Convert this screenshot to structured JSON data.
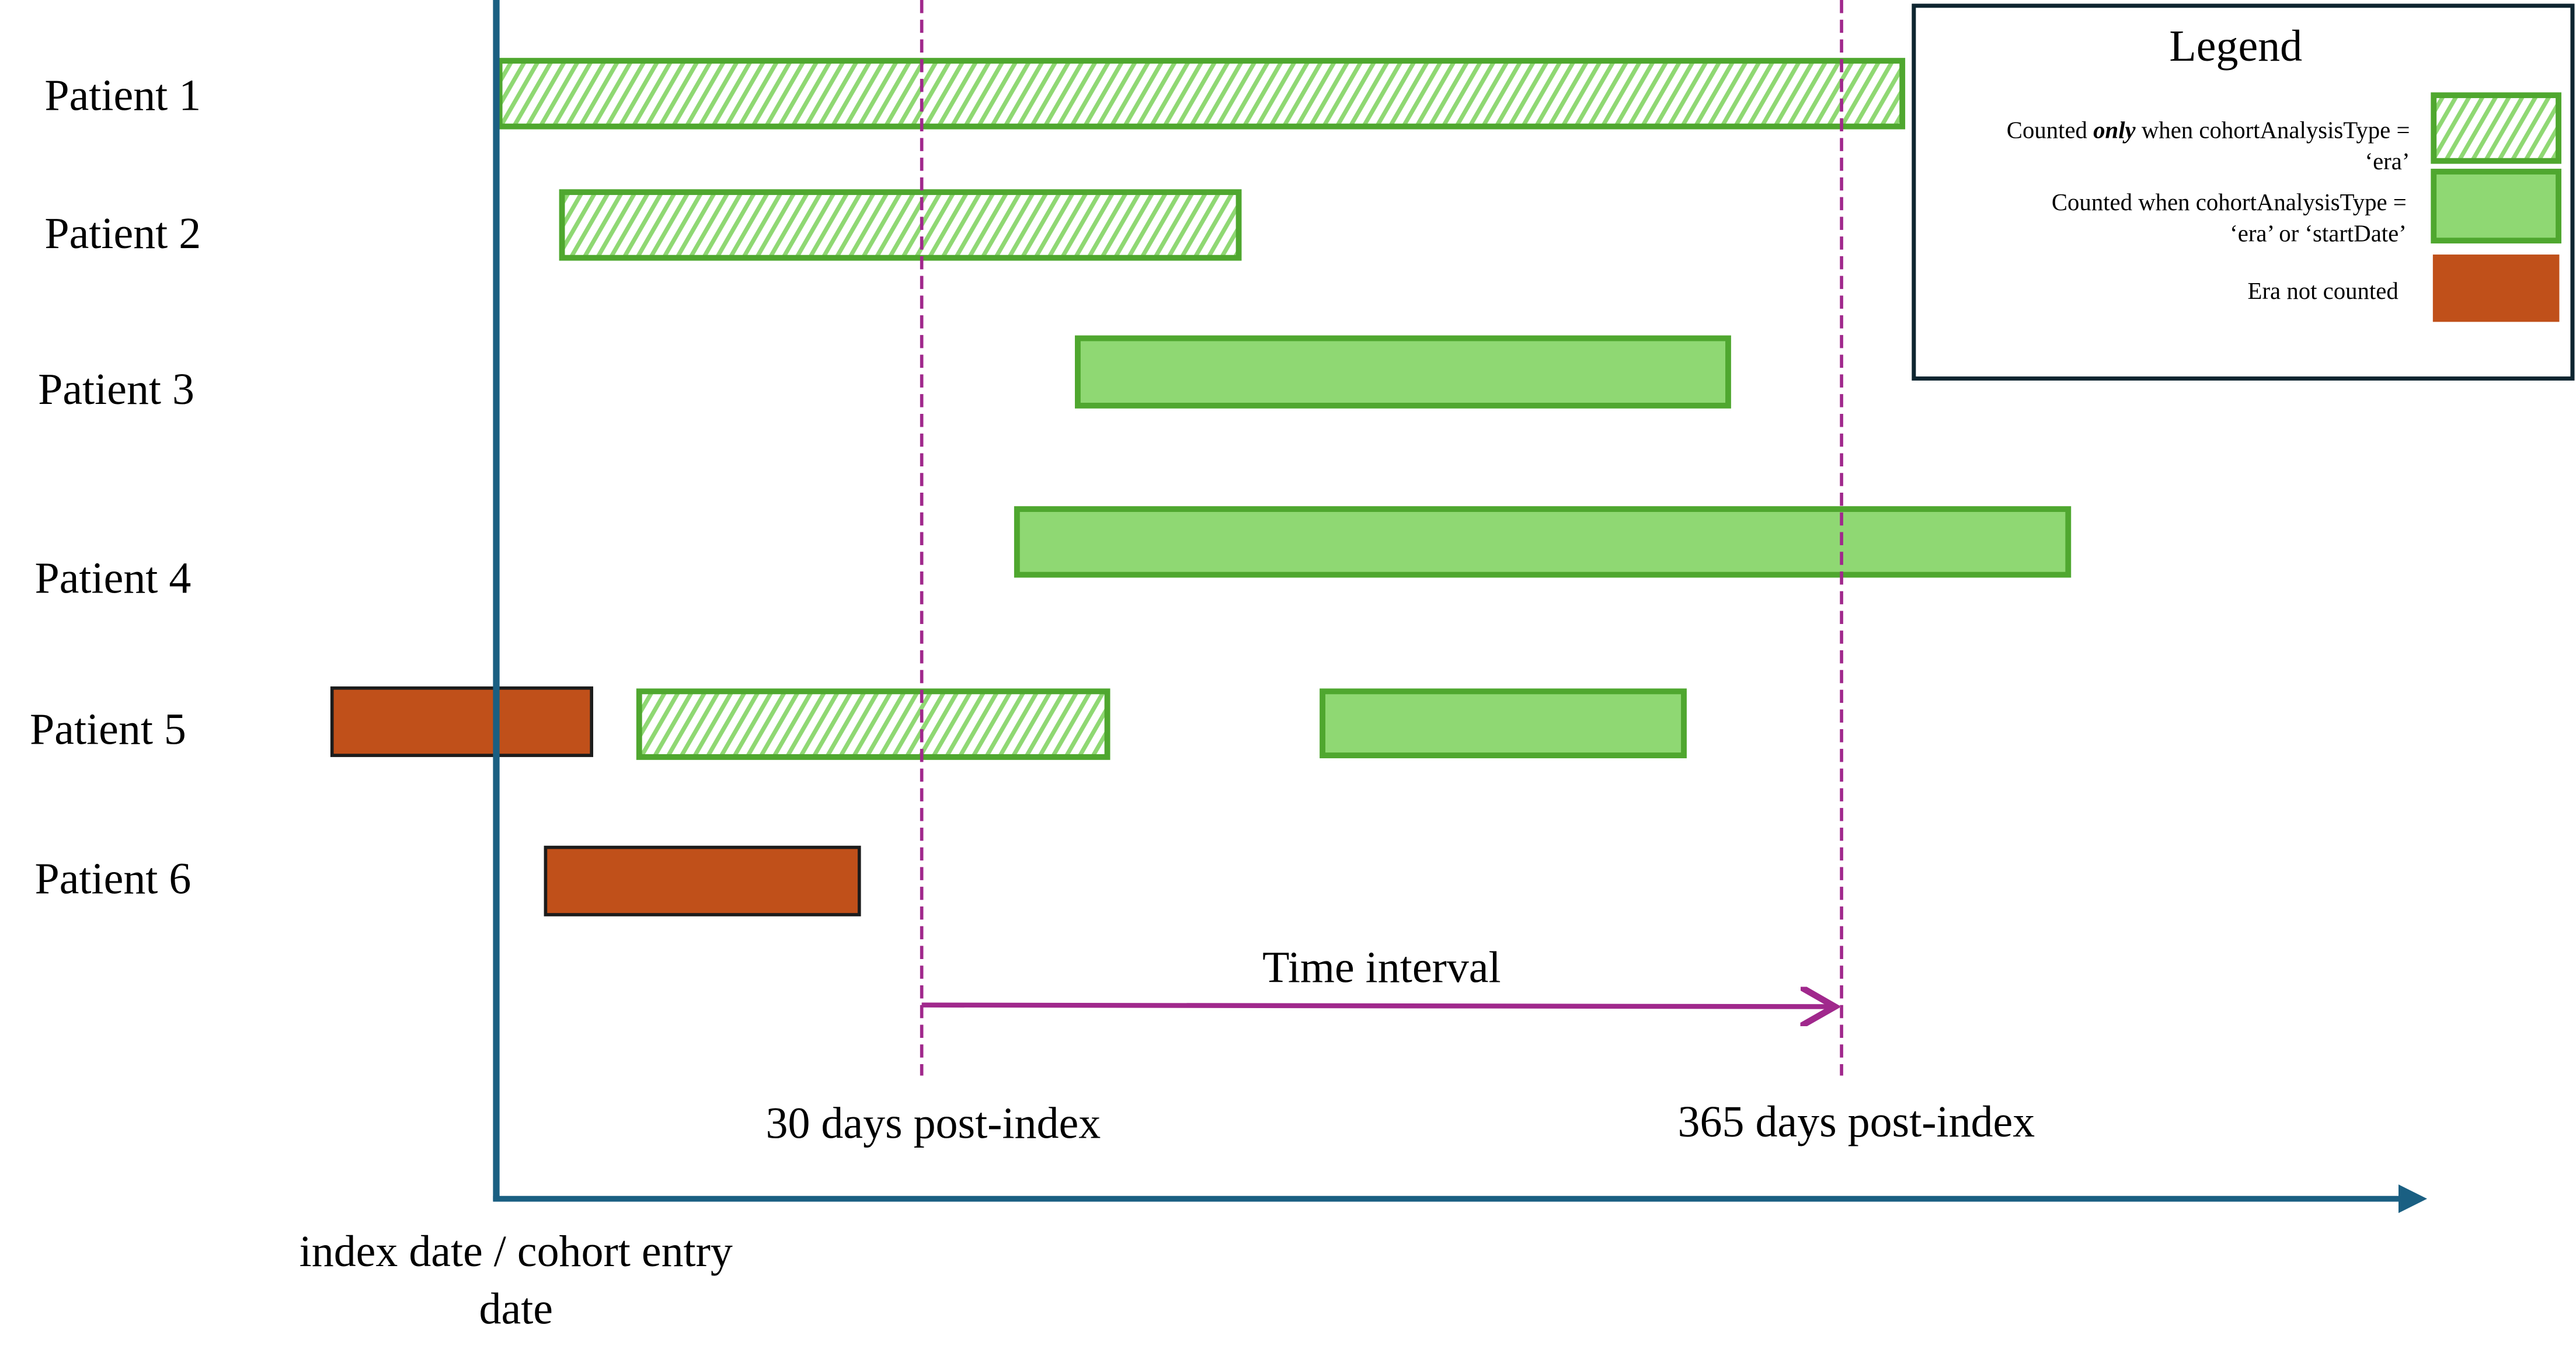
{
  "patients": [
    {
      "label": "Patient 1"
    },
    {
      "label": "Patient 2"
    },
    {
      "label": "Patient 3"
    },
    {
      "label": "Patient 4"
    },
    {
      "label": "Patient 5"
    },
    {
      "label": "Patient 6"
    }
  ],
  "annotations": {
    "time_interval": "Time interval",
    "marker_30": "30 days post-index",
    "marker_365": "365 days post-index",
    "index_line1": "index date / cohort entry",
    "index_line2": "date"
  },
  "legend": {
    "title": "Legend",
    "items": [
      {
        "pre": "Counted ",
        "emph": "only",
        "post": " when cohortAnalysisType =",
        "line2": "‘era’",
        "style": "hatched"
      },
      {
        "line1": "Counted when cohortAnalysisType =",
        "line2": "‘era’ or ‘startDate’",
        "style": "solid-green"
      },
      {
        "line1": "Era not counted",
        "style": "orange"
      }
    ]
  },
  "colors": {
    "green_border": "#4fa72f",
    "green_fill": "#8fd873",
    "orange": "#c0501a",
    "axis": "#1a5f82",
    "marker": "#a0288c"
  }
}
